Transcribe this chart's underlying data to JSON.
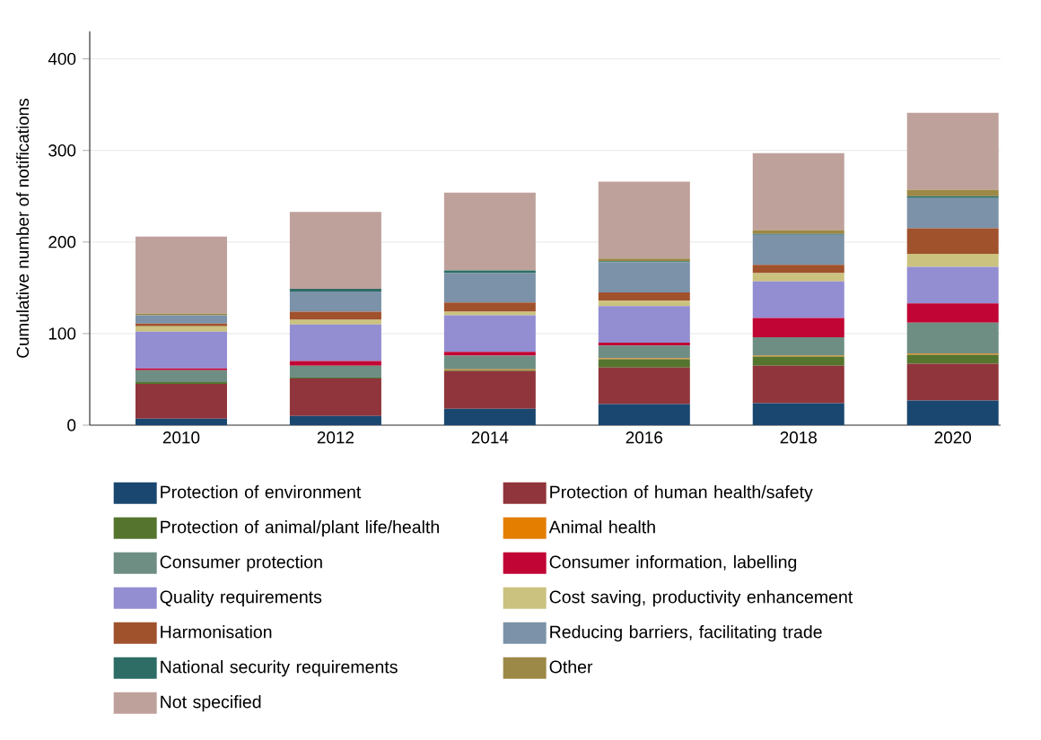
{
  "chart_data": {
    "type": "bar",
    "stacked": true,
    "ylabel": "Cumulative number of notifications",
    "categories": [
      "2010",
      "2012",
      "2014",
      "2016",
      "2018",
      "2020"
    ],
    "series": [
      {
        "name": "Protection of environment",
        "color": "#1a476f",
        "values": [
          7,
          10,
          18,
          23,
          24,
          27
        ]
      },
      {
        "name": "Protection of human health/safety",
        "color": "#90353b",
        "values": [
          38,
          41,
          41,
          40,
          41,
          40
        ]
      },
      {
        "name": "Protection of animal/plant life/health",
        "color": "#55752f",
        "values": [
          2,
          1,
          1,
          9,
          10,
          10
        ]
      },
      {
        "name": "Animal health",
        "color": "#e37e00",
        "values": [
          0,
          0,
          1,
          1,
          1,
          1
        ]
      },
      {
        "name": "Consumer protection",
        "color": "#6e8e84",
        "values": [
          13,
          13,
          15,
          14,
          20,
          34
        ]
      },
      {
        "name": "Consumer information, labelling",
        "color": "#c10534",
        "values": [
          2,
          5,
          4,
          3,
          21,
          21
        ]
      },
      {
        "name": "Quality requirements",
        "color": "#938dd2",
        "values": [
          40,
          40,
          40,
          40,
          40,
          40
        ]
      },
      {
        "name": "Cost saving, productivity enhancement",
        "color": "#cac27e",
        "values": [
          6,
          5,
          4,
          6,
          9,
          14
        ]
      },
      {
        "name": "Harmonisation",
        "color": "#a0522d",
        "values": [
          3,
          9,
          10,
          9,
          9,
          28
        ]
      },
      {
        "name": "Reducing barriers, facilitating trade",
        "color": "#7b92a8",
        "values": [
          9,
          22,
          32,
          33,
          33,
          33
        ]
      },
      {
        "name": "National security requirements",
        "color": "#2d6d66",
        "values": [
          0,
          3,
          3,
          1,
          1,
          2
        ]
      },
      {
        "name": "Other",
        "color": "#9c8847",
        "values": [
          2,
          0,
          0,
          3,
          4,
          7
        ]
      },
      {
        "name": "Not specified",
        "color": "#bfa19c",
        "values": [
          84,
          84,
          85,
          84,
          84,
          84
        ]
      }
    ],
    "ylim": [
      0,
      430
    ],
    "yticks": [
      0,
      100,
      200,
      300,
      400
    ],
    "grid": "y",
    "legend": "bottom"
  }
}
